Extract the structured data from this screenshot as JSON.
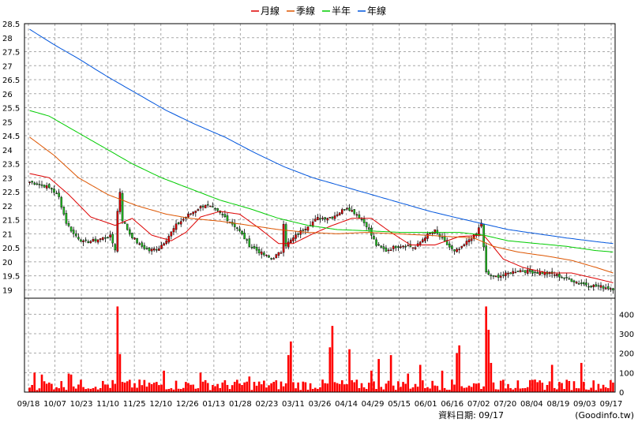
{
  "chart_data": {
    "type": "candlestick",
    "legend": [
      {
        "name": "月線",
        "color": "#dd0000"
      },
      {
        "name": "季線",
        "color": "#dd5500"
      },
      {
        "name": "半年",
        "color": "#00cc00"
      },
      {
        "name": "年線",
        "color": "#0055dd"
      }
    ],
    "price_axis": {
      "ylim": [
        18.7,
        28.5
      ],
      "ticks": [
        "28.5",
        "28",
        "27.5",
        "27",
        "26.5",
        "26",
        "25.5",
        "25",
        "24.5",
        "24",
        "23.5",
        "23",
        "22.5",
        "22",
        "21.5",
        "21",
        "20.5",
        "20",
        "19.5",
        "19"
      ]
    },
    "volume_axis": {
      "ylim": [
        0,
        450
      ],
      "ticks": [
        "0",
        "100",
        "200",
        "300",
        "400"
      ]
    },
    "x_ticks": [
      "09/18",
      "10/07",
      "10/23",
      "11/10",
      "11/25",
      "12/10",
      "12/26",
      "01/13",
      "01/28",
      "02/23",
      "03/11",
      "03/26",
      "04/14",
      "04/29",
      "05/15",
      "06/01",
      "06/16",
      "07/02",
      "07/20",
      "08/04",
      "08/19",
      "09/03",
      "09/17"
    ],
    "num_bars": 240,
    "price_anchors": [
      [
        0,
        22.85
      ],
      [
        5,
        22.75
      ],
      [
        9,
        22.6
      ],
      [
        12,
        22.3
      ],
      [
        15,
        21.4
      ],
      [
        18,
        21.0
      ],
      [
        22,
        20.7
      ],
      [
        26,
        20.75
      ],
      [
        30,
        20.85
      ],
      [
        33,
        20.9
      ],
      [
        35,
        20.45
      ],
      [
        36,
        21.8
      ],
      [
        37,
        22.5
      ],
      [
        38,
        21.5
      ],
      [
        41,
        21.0
      ],
      [
        45,
        20.6
      ],
      [
        49,
        20.4
      ],
      [
        53,
        20.5
      ],
      [
        56,
        20.8
      ],
      [
        60,
        21.3
      ],
      [
        64,
        21.6
      ],
      [
        68,
        21.85
      ],
      [
        72,
        22.05
      ],
      [
        75,
        21.9
      ],
      [
        80,
        21.6
      ],
      [
        85,
        21.2
      ],
      [
        90,
        20.6
      ],
      [
        95,
        20.3
      ],
      [
        99,
        20.1
      ],
      [
        103,
        20.35
      ],
      [
        104,
        21.4
      ],
      [
        105,
        20.6
      ],
      [
        110,
        21.0
      ],
      [
        114,
        21.3
      ],
      [
        118,
        21.55
      ],
      [
        124,
        21.6
      ],
      [
        130,
        21.95
      ],
      [
        134,
        21.7
      ],
      [
        138,
        21.3
      ],
      [
        142,
        20.6
      ],
      [
        146,
        20.4
      ],
      [
        150,
        20.55
      ],
      [
        154,
        20.6
      ],
      [
        158,
        20.5
      ],
      [
        162,
        20.9
      ],
      [
        166,
        21.1
      ],
      [
        170,
        20.7
      ],
      [
        174,
        20.35
      ],
      [
        177,
        20.5
      ],
      [
        180,
        20.8
      ],
      [
        183,
        21.0
      ],
      [
        185,
        21.4
      ],
      [
        187,
        19.6
      ],
      [
        190,
        19.45
      ],
      [
        195,
        19.55
      ],
      [
        200,
        19.7
      ],
      [
        205,
        19.65
      ],
      [
        210,
        19.6
      ],
      [
        215,
        19.55
      ],
      [
        220,
        19.4
      ],
      [
        225,
        19.25
      ],
      [
        230,
        19.15
      ],
      [
        235,
        19.1
      ],
      [
        239,
        19.05
      ]
    ],
    "volume_peaks": [
      [
        36,
        440
      ],
      [
        37,
        195
      ],
      [
        17,
        90
      ],
      [
        16,
        95
      ],
      [
        107,
        260
      ],
      [
        106,
        190
      ],
      [
        124,
        340
      ],
      [
        123,
        230
      ],
      [
        131,
        220
      ],
      [
        143,
        170
      ],
      [
        148,
        190
      ],
      [
        160,
        140
      ],
      [
        175,
        200
      ],
      [
        176,
        240
      ],
      [
        187,
        440
      ],
      [
        188,
        320
      ],
      [
        189,
        150
      ],
      [
        214,
        140
      ],
      [
        226,
        150
      ],
      [
        55,
        110
      ],
      [
        70,
        100
      ],
      [
        90,
        80
      ],
      [
        200,
        60
      ],
      [
        2,
        100
      ],
      [
        5,
        90
      ],
      [
        140,
        110
      ],
      [
        169,
        110
      ],
      [
        155,
        95
      ]
    ],
    "ma_month": [
      [
        0,
        23.15
      ],
      [
        8,
        23.0
      ],
      [
        16,
        22.4
      ],
      [
        25,
        21.6
      ],
      [
        35,
        21.3
      ],
      [
        42,
        21.55
      ],
      [
        50,
        20.95
      ],
      [
        58,
        20.75
      ],
      [
        64,
        21.05
      ],
      [
        70,
        21.6
      ],
      [
        78,
        21.8
      ],
      [
        86,
        21.7
      ],
      [
        94,
        21.2
      ],
      [
        102,
        20.65
      ],
      [
        108,
        20.65
      ],
      [
        116,
        21.0
      ],
      [
        124,
        21.3
      ],
      [
        132,
        21.55
      ],
      [
        140,
        21.55
      ],
      [
        148,
        21.05
      ],
      [
        156,
        20.6
      ],
      [
        166,
        20.6
      ],
      [
        176,
        20.9
      ],
      [
        186,
        20.95
      ],
      [
        194,
        20.1
      ],
      [
        202,
        19.8
      ],
      [
        212,
        19.6
      ],
      [
        222,
        19.6
      ],
      [
        232,
        19.4
      ],
      [
        239,
        19.25
      ]
    ],
    "ma_quarter": [
      [
        0,
        24.45
      ],
      [
        10,
        23.8
      ],
      [
        20,
        23.0
      ],
      [
        32,
        22.4
      ],
      [
        44,
        22.0
      ],
      [
        56,
        21.7
      ],
      [
        66,
        21.55
      ],
      [
        78,
        21.45
      ],
      [
        90,
        21.3
      ],
      [
        102,
        21.15
      ],
      [
        114,
        21.05
      ],
      [
        126,
        21.0
      ],
      [
        138,
        21.05
      ],
      [
        150,
        21.0
      ],
      [
        162,
        20.95
      ],
      [
        172,
        20.9
      ],
      [
        182,
        20.85
      ],
      [
        190,
        20.55
      ],
      [
        200,
        20.35
      ],
      [
        212,
        20.2
      ],
      [
        222,
        20.05
      ],
      [
        232,
        19.8
      ],
      [
        239,
        19.6
      ]
    ],
    "ma_half": [
      [
        0,
        25.4
      ],
      [
        8,
        25.2
      ],
      [
        18,
        24.7
      ],
      [
        30,
        24.1
      ],
      [
        42,
        23.5
      ],
      [
        54,
        23.0
      ],
      [
        66,
        22.6
      ],
      [
        78,
        22.2
      ],
      [
        90,
        21.9
      ],
      [
        102,
        21.55
      ],
      [
        114,
        21.3
      ],
      [
        126,
        21.15
      ],
      [
        140,
        21.1
      ],
      [
        152,
        21.05
      ],
      [
        164,
        21.05
      ],
      [
        176,
        21.05
      ],
      [
        186,
        20.95
      ],
      [
        196,
        20.75
      ],
      [
        208,
        20.65
      ],
      [
        220,
        20.55
      ],
      [
        232,
        20.4
      ],
      [
        239,
        20.35
      ]
    ],
    "ma_year": [
      [
        0,
        28.3
      ],
      [
        10,
        27.75
      ],
      [
        20,
        27.25
      ],
      [
        32,
        26.6
      ],
      [
        44,
        26.0
      ],
      [
        56,
        25.4
      ],
      [
        68,
        24.9
      ],
      [
        80,
        24.45
      ],
      [
        92,
        23.9
      ],
      [
        104,
        23.4
      ],
      [
        116,
        23.0
      ],
      [
        128,
        22.7
      ],
      [
        140,
        22.4
      ],
      [
        152,
        22.1
      ],
      [
        164,
        21.8
      ],
      [
        176,
        21.55
      ],
      [
        186,
        21.35
      ],
      [
        196,
        21.15
      ],
      [
        208,
        21.0
      ],
      [
        220,
        20.85
      ],
      [
        232,
        20.72
      ],
      [
        239,
        20.65
      ]
    ]
  },
  "footer": {
    "date_label": "資料日期: 09/17",
    "source": "(Goodinfo.tw)"
  },
  "colors": {
    "up": "#dd0000",
    "down": "#22bb22",
    "volume": "#ff0000",
    "grid": "#a8a8a8",
    "axis": "#000000"
  }
}
